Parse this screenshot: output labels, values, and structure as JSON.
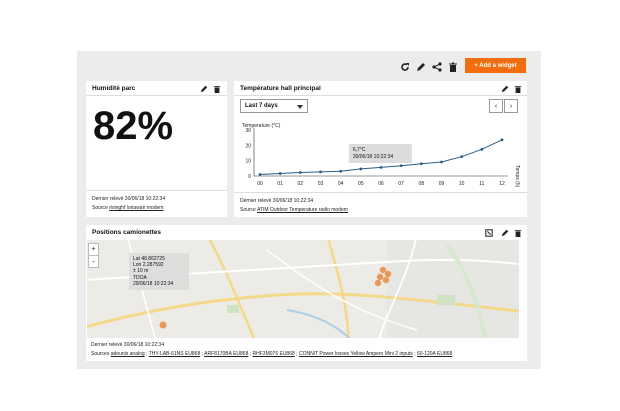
{
  "toolbar": {
    "add_widget_label": "+ Add a widget"
  },
  "humidity_card": {
    "title": "Humidité parc",
    "value": "82%",
    "last_reading": "Dernier relevé 30/06/18 10:22:34",
    "source_prefix": "Source",
    "source_link": "risinghf loriawan modem"
  },
  "temperature_card": {
    "title": "Température hall principal",
    "range_selected": "Last 7 days",
    "prev_label": "‹",
    "next_label": "›",
    "last_reading": "Dernier relevé 30/06/18 10:22:34",
    "source_prefix": "Source",
    "source_link": "ATIM Outdoor Temperature radio modem"
  },
  "positions_card": {
    "title": "Positions camionettes",
    "zoom_in": "+",
    "zoom_out": "-",
    "tooltip": {
      "lat": "Lat 48.862725",
      "lon": "Lon 2.287592",
      "accuracy": "± 10 m",
      "method": "TDOA",
      "time": "29/06/18 10:22:34"
    },
    "last_reading": "Dernier relevé 30/06/18 10:22:34",
    "sources_prefix": "Sources",
    "sources": [
      "adeunis analog",
      "THY-LAB-61NS EU868",
      "ARF8170BA EU868",
      "RHF3M076 EU868",
      "CONNIT Power losses Yellow Ampero Mini 2 inputs",
      "60-120A EU868"
    ],
    "separator": " ; "
  },
  "chart_data": {
    "type": "line",
    "title": "",
    "xlabel": "Temps (h)",
    "ylabel": "Temperature (°C)",
    "x": [
      "00",
      "01",
      "02",
      "03",
      "04",
      "05",
      "06",
      "07",
      "08",
      "09",
      "10",
      "11",
      "12"
    ],
    "values": [
      1,
      1.6,
      2.3,
      2.7,
      3.1,
      4.6,
      5.6,
      6.7,
      8,
      9.1,
      12.6,
      17.4,
      23.6
    ],
    "ylim": [
      0,
      30
    ],
    "yticks": [
      "0",
      "10",
      "20",
      "30"
    ],
    "grid": false,
    "series_color": "#2b5c8a",
    "tooltip": {
      "value": "6,7°C",
      "time": "30/06/18 10:22:34"
    }
  }
}
